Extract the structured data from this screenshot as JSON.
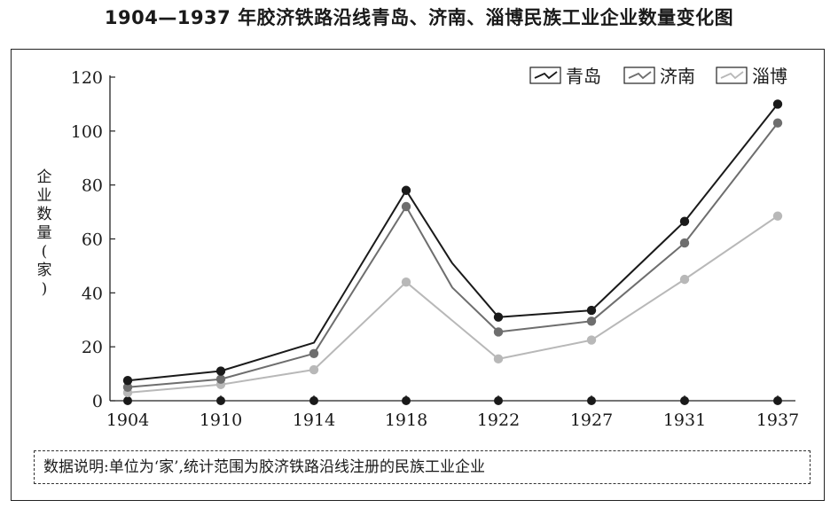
{
  "title": "1904—1937 年胶济铁路沿线青岛、济南、淄博民族工业企业数量变化图",
  "note": "数据说明:单位为‘家’,统计范围为胶济铁路沿线注册的民族工业企业",
  "chart_data": {
    "type": "line",
    "title": "1904—1937 年胶济铁路沿线青岛、济南、淄博民族工业企业数量变化图",
    "xlabel": "",
    "ylabel": "企业数量(家)",
    "ylim": [
      0,
      120
    ],
    "yticks": [
      0,
      20,
      40,
      60,
      80,
      100,
      120
    ],
    "categories": [
      "1904",
      "1910",
      "1914",
      "1918",
      "1922",
      "1927",
      "1931",
      "1937"
    ],
    "baseline_markers": [
      0,
      0,
      0,
      0,
      0,
      0,
      0,
      0
    ],
    "series": [
      {
        "name": "青岛",
        "color": "#1a1a1a",
        "points": [
          [
            1904,
            7.5
          ],
          [
            1910,
            11
          ],
          [
            1914,
            21.5
          ],
          [
            1918,
            78
          ],
          [
            1920,
            51
          ],
          [
            1922,
            31
          ],
          [
            1927,
            33.5
          ],
          [
            1931,
            66.5
          ],
          [
            1937,
            110
          ]
        ],
        "markers": [
          [
            1904,
            7.5
          ],
          [
            1910,
            11
          ],
          [
            1918,
            78
          ],
          [
            1922,
            31
          ],
          [
            1927,
            33.5
          ],
          [
            1931,
            66.5
          ],
          [
            1937,
            110
          ]
        ]
      },
      {
        "name": "济南",
        "color": "#6e6e6e",
        "points": [
          [
            1904,
            5
          ],
          [
            1910,
            8
          ],
          [
            1914,
            17.5
          ],
          [
            1918,
            72
          ],
          [
            1920,
            42
          ],
          [
            1922,
            25.5
          ],
          [
            1927,
            29.5
          ],
          [
            1931,
            58.5
          ],
          [
            1937,
            103
          ]
        ],
        "markers": [
          [
            1904,
            5
          ],
          [
            1910,
            8
          ],
          [
            1914,
            17.5
          ],
          [
            1918,
            72
          ],
          [
            1922,
            25.5
          ],
          [
            1927,
            29.5
          ],
          [
            1931,
            58.5
          ],
          [
            1937,
            103
          ]
        ]
      },
      {
        "name": "淄博",
        "color": "#b8b8b8",
        "points": [
          [
            1904,
            3
          ],
          [
            1910,
            6
          ],
          [
            1914,
            11.5
          ],
          [
            1918,
            44
          ],
          [
            1922,
            15.5
          ],
          [
            1927,
            22.5
          ],
          [
            1931,
            45
          ],
          [
            1937,
            68.5
          ]
        ],
        "markers": [
          [
            1904,
            3
          ],
          [
            1910,
            6
          ],
          [
            1914,
            11.5
          ],
          [
            1918,
            44
          ],
          [
            1922,
            15.5
          ],
          [
            1927,
            22.5
          ],
          [
            1931,
            45
          ],
          [
            1937,
            68.5
          ]
        ]
      }
    ],
    "legend_position": "top-right",
    "grid": false
  }
}
